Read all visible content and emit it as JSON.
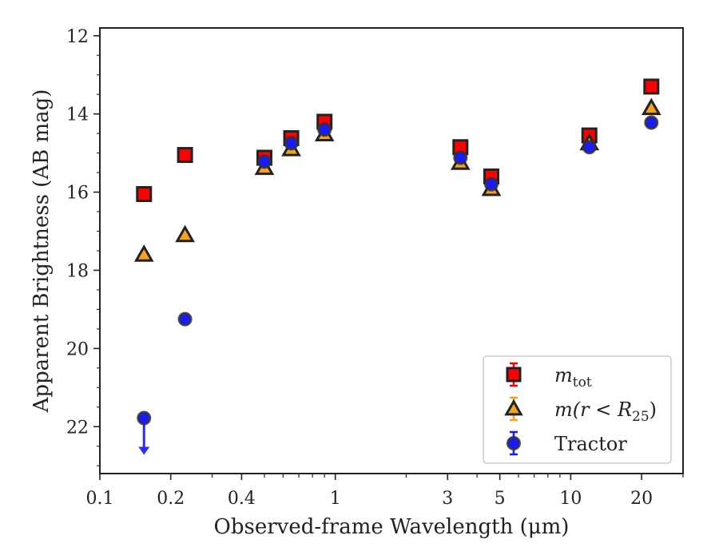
{
  "chart_data": {
    "type": "scatter",
    "title": "",
    "xlabel": "Observed-frame Wavelength (μm)",
    "ylabel": "Apparent Brightness (AB mag)",
    "xscale": "log",
    "xlim": [
      0.1,
      30
    ],
    "ylim": [
      23.2,
      11.8
    ],
    "y_inverted": true,
    "x_ticks": [
      0.1,
      0.2,
      0.4,
      1,
      3,
      5,
      10,
      20
    ],
    "x_tick_labels": [
      "0.1",
      "0.2",
      "0.4",
      "1",
      "3",
      "5",
      "10",
      "20"
    ],
    "y_ticks": [
      12,
      14,
      16,
      18,
      20,
      22
    ],
    "y_tick_labels": [
      "12",
      "14",
      "16",
      "18",
      "20",
      "22"
    ],
    "legend_position": "lower-right",
    "series": [
      {
        "name": "m_tot",
        "legend_main": "m",
        "legend_sub": "tot",
        "marker": "square",
        "color": "#ff0000",
        "edge": "#222222",
        "points": [
          {
            "x": 0.154,
            "y": 16.05
          },
          {
            "x": 0.23,
            "y": 15.05
          },
          {
            "x": 0.5,
            "y": 15.12
          },
          {
            "x": 0.65,
            "y": 14.62
          },
          {
            "x": 0.9,
            "y": 14.2
          },
          {
            "x": 3.4,
            "y": 14.85
          },
          {
            "x": 4.6,
            "y": 15.6
          },
          {
            "x": 12.0,
            "y": 14.55
          },
          {
            "x": 22.0,
            "y": 13.3
          }
        ]
      },
      {
        "name": "m(r < R25)",
        "legend_main": "m(r < R",
        "legend_sub": "25",
        "legend_end": ")",
        "marker": "triangle",
        "color": "#f5a31a",
        "edge": "#222222",
        "points": [
          {
            "x": 0.154,
            "y": 17.6
          },
          {
            "x": 0.23,
            "y": 17.1
          },
          {
            "x": 0.5,
            "y": 15.38
          },
          {
            "x": 0.65,
            "y": 14.9
          },
          {
            "x": 0.9,
            "y": 14.52
          },
          {
            "x": 3.4,
            "y": 15.25
          },
          {
            "x": 4.6,
            "y": 15.92
          },
          {
            "x": 12.0,
            "y": 14.75
          },
          {
            "x": 22.0,
            "y": 13.85
          }
        ]
      },
      {
        "name": "Tractor",
        "marker": "circle",
        "color": "#1a1aff",
        "edge": "#333333",
        "points": [
          {
            "x": 0.154,
            "y": 21.78,
            "upper_limit": true
          },
          {
            "x": 0.23,
            "y": 19.25
          },
          {
            "x": 0.5,
            "y": 15.22
          },
          {
            "x": 0.65,
            "y": 14.75
          },
          {
            "x": 0.9,
            "y": 14.4
          },
          {
            "x": 3.4,
            "y": 15.12
          },
          {
            "x": 4.6,
            "y": 15.8
          },
          {
            "x": 12.0,
            "y": 14.85
          },
          {
            "x": 22.0,
            "y": 14.22
          }
        ]
      }
    ]
  }
}
